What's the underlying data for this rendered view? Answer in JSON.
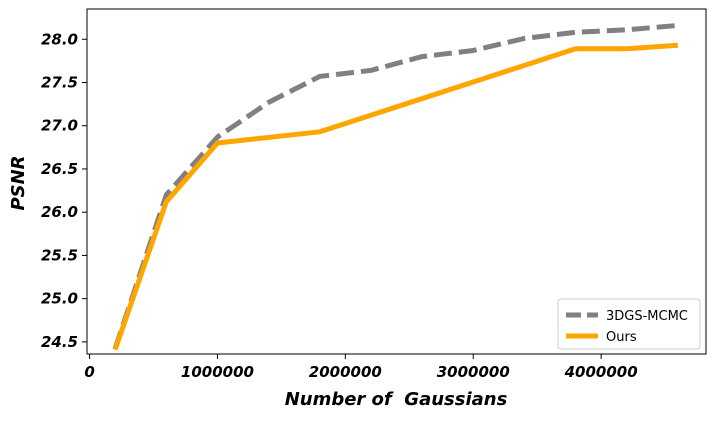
{
  "chart_data": {
    "type": "line",
    "title": "",
    "xlabel": "Number of  Gaussians",
    "ylabel": "PSNR",
    "xlim": [
      -20000,
      4820000
    ],
    "ylim": [
      24.36,
      28.35
    ],
    "xticks": [
      0,
      1000000,
      2000000,
      3000000,
      4000000
    ],
    "xtick_labels": [
      "0",
      "1000000",
      "2000000",
      "3000000",
      "4000000"
    ],
    "yticks": [
      24.5,
      25.0,
      25.5,
      26.0,
      26.5,
      27.0,
      27.5,
      28.0
    ],
    "ytick_labels": [
      "24.5",
      "25.0",
      "25.5",
      "26.0",
      "26.5",
      "27.0",
      "27.5",
      "28.0"
    ],
    "grid": false,
    "legend_position": "lower-right",
    "series": [
      {
        "name": "3DGS-MCMC",
        "color": "#808080",
        "style": "dashed",
        "x": [
          200000,
          600000,
          1000000,
          1400000,
          1800000,
          2200000,
          2600000,
          3000000,
          3400000,
          3800000,
          4200000,
          4600000
        ],
        "y": [
          24.42,
          26.2,
          26.87,
          27.27,
          27.57,
          27.64,
          27.8,
          27.87,
          28.01,
          28.08,
          28.11,
          28.16
        ]
      },
      {
        "name": "Ours",
        "color": "#ffa500",
        "style": "solid",
        "x": [
          200000,
          600000,
          1000000,
          1800000,
          3800000,
          4200000,
          4600000
        ],
        "y": [
          24.41,
          26.12,
          26.8,
          26.93,
          27.89,
          27.89,
          27.93
        ]
      }
    ]
  }
}
